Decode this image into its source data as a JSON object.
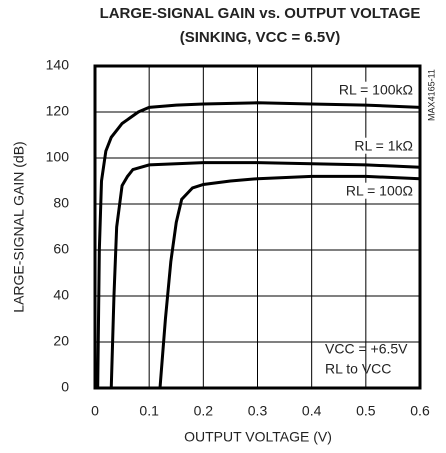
{
  "chart_data": {
    "type": "line",
    "title": [
      "LARGE-SIGNAL GAIN vs. OUTPUT VOLTAGE",
      "(SINKING, VCC = 6.5V)"
    ],
    "x_label": "OUTPUT VOLTAGE (V)",
    "y_label": "LARGE-SIGNAL GAIN (dB)",
    "xlim": [
      0,
      0.6
    ],
    "xticks": [
      0,
      0.1,
      0.2,
      0.3,
      0.4,
      0.5,
      0.6
    ],
    "ylim": [
      0,
      140
    ],
    "yticks": [
      0,
      20,
      40,
      60,
      80,
      100,
      120,
      140
    ],
    "grid": true,
    "series": [
      {
        "name": "RL = 100kΩ",
        "color": "#000000",
        "x": [
          0.005,
          0.008,
          0.012,
          0.02,
          0.03,
          0.05,
          0.08,
          0.1,
          0.15,
          0.2,
          0.3,
          0.4,
          0.5,
          0.6
        ],
        "values": [
          0,
          60,
          90,
          103,
          109,
          115,
          120,
          122,
          123,
          123.5,
          124,
          123.5,
          123,
          122
        ]
      },
      {
        "name": "RL = 1kΩ",
        "color": "#000000",
        "x": [
          0.03,
          0.035,
          0.04,
          0.05,
          0.06,
          0.07,
          0.1,
          0.15,
          0.2,
          0.3,
          0.4,
          0.5,
          0.6
        ],
        "values": [
          0,
          40,
          70,
          88,
          92,
          95,
          97,
          97.5,
          98,
          98,
          97.5,
          97,
          96
        ]
      },
      {
        "name": "RL = 100Ω",
        "color": "#000000",
        "x": [
          0.12,
          0.125,
          0.13,
          0.14,
          0.15,
          0.16,
          0.18,
          0.2,
          0.25,
          0.3,
          0.4,
          0.5,
          0.6
        ],
        "values": [
          0,
          15,
          30,
          55,
          72,
          82,
          87,
          88.5,
          90,
          91,
          92,
          92,
          91
        ]
      }
    ],
    "annotations": [
      "VCC = +6.5V",
      "RL to VCC",
      "MAX4165-11"
    ]
  }
}
